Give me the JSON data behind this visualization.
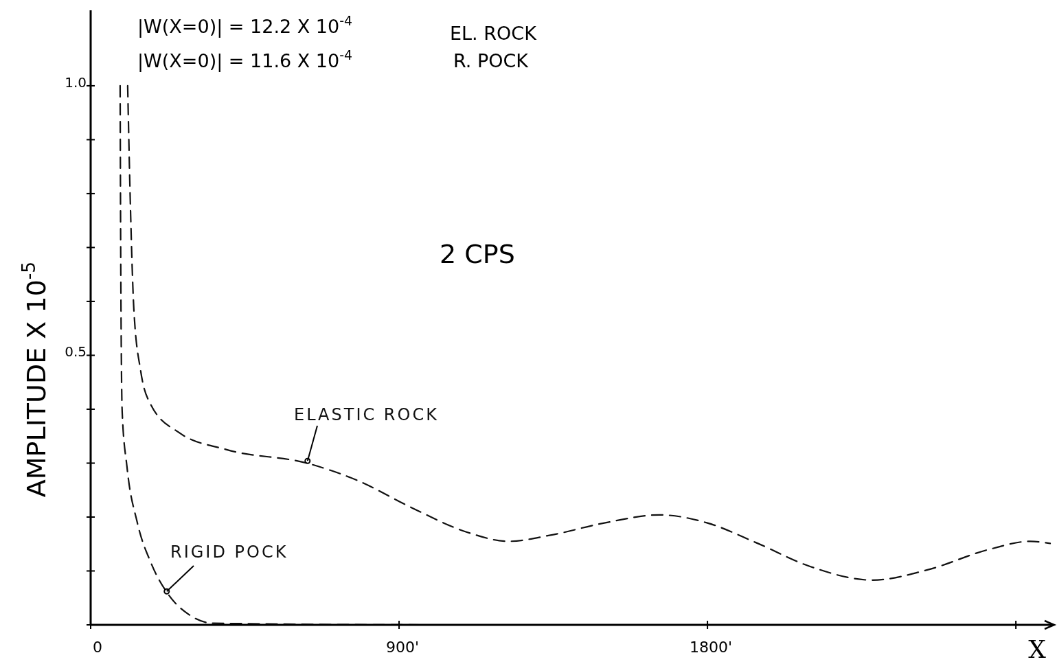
{
  "chart_data": {
    "type": "line",
    "title": "2 CPS",
    "xlabel": "X",
    "ylabel": "AMPLITUDE X 10$^{-5}$",
    "annotations": [
      "|W(X=0)| = 12.2 X 10$^{-4}$",
      "EL. ROCK",
      "|W(X=0)| = 11.6 X 10$^{-4}$",
      "R. POCK"
    ],
    "xlim": [
      0,
      2800
    ],
    "ylim": [
      0,
      1.14
    ],
    "xticks": [
      0,
      {
        "value": 900,
        "label": "900'"
      },
      {
        "value": 1800,
        "label": "1800'"
      },
      {
        "value": 2700,
        "label": null
      }
    ],
    "yticks": [
      {
        "value": 0,
        "label": null
      },
      {
        "value": 0.1,
        "label": null
      },
      {
        "value": 0.2,
        "label": null
      },
      {
        "value": 0.3,
        "label": null
      },
      {
        "value": 0.4,
        "label": null
      },
      {
        "value": 0.5,
        "label": "0.5"
      },
      {
        "value": 0.6,
        "label": null
      },
      {
        "value": 0.7,
        "label": null
      },
      {
        "value": 0.8,
        "label": null
      },
      {
        "value": 0.9,
        "label": null
      },
      {
        "value": 1.0,
        "label": "1.0"
      }
    ],
    "grid": false,
    "line_style": "dashed",
    "marker": "none",
    "series": [
      {
        "name": "ELASTIC ROCK",
        "color": "#111111",
        "x": [
          108,
          116,
          126,
          146,
          176,
          257,
          397,
          637,
          778,
          938,
          1098,
          1219,
          1339,
          1499,
          1660,
          1800,
          1940,
          2101,
          2281,
          2442,
          2622,
          2742,
          2800
        ],
        "values": [
          1.0,
          0.777,
          0.586,
          0.471,
          0.408,
          0.357,
          0.325,
          0.299,
          0.268,
          0.217,
          0.172,
          0.155,
          0.166,
          0.189,
          0.204,
          0.189,
          0.153,
          0.108,
          0.083,
          0.102,
          0.14,
          0.155,
          0.151
        ]
      },
      {
        "name": "RIGID POCK",
        "color": "#111111",
        "x": [
          86,
          88,
          92,
          106,
          136,
          176,
          226,
          287,
          357,
          1000,
          2000,
          2800
        ],
        "values": [
          1.0,
          0.65,
          0.395,
          0.293,
          0.19,
          0.115,
          0.057,
          0.019,
          0.003,
          0,
          0,
          0
        ]
      }
    ]
  }
}
